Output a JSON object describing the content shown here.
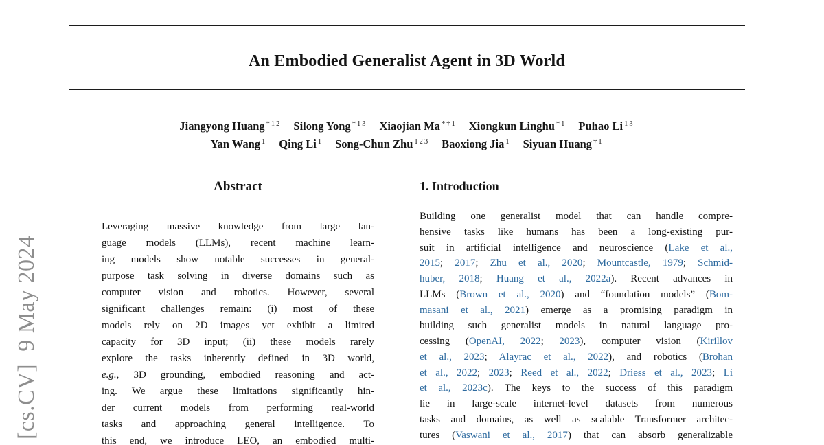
{
  "watermark": {
    "text": "[cs.CV]  9 May 2024"
  },
  "title": "An Embodied Generalist Agent in 3D World",
  "authors": {
    "line1": [
      {
        "name": "Jiangyong Huang",
        "sup": "*12"
      },
      {
        "name": "Silong Yong",
        "sup": "*13"
      },
      {
        "name": "Xiaojian Ma",
        "sup": "*†1"
      },
      {
        "name": "Xiongkun Linghu",
        "sup": "*1"
      },
      {
        "name": "Puhao Li",
        "sup": "13"
      }
    ],
    "line2": [
      {
        "name": "Yan Wang",
        "sup": "1"
      },
      {
        "name": "Qing Li",
        "sup": "1"
      },
      {
        "name": "Song-Chun Zhu",
        "sup": "123"
      },
      {
        "name": "Baoxiong Jia",
        "sup": "1"
      },
      {
        "name": "Siyuan Huang",
        "sup": "†1"
      }
    ]
  },
  "abstract": {
    "heading": "Abstract",
    "lines": [
      "Leveraging massive knowledge from large lan-",
      "guage models (LLMs), recent machine learn-",
      "ing models show notable successes in general-",
      "purpose task solving in diverse domains such as",
      "computer vision and robotics. However, several",
      "significant challenges remain: (i) most of these",
      "models rely on 2D images yet exhibit a limited",
      "capacity for 3D input; (ii) these models rarely",
      "explore the tasks inherently defined in 3D world,",
      [
        {
          "t": "e.g.",
          "c": "em"
        },
        {
          "t": ", 3D grounding, embodied reasoning and act-",
          "c": ""
        }
      ],
      "ing. We argue these limitations significantly hin-",
      "der current models from performing real-world",
      "tasks and approaching general intelligence. To",
      "this end, we introduce LEO, an embodied multi-"
    ]
  },
  "introduction": {
    "heading": "1. Introduction",
    "lines": [
      "Building one generalist model that can handle compre-",
      "hensive tasks like humans has been a long-existing pur-",
      [
        {
          "t": "suit in artificial intelligence and neuroscience (",
          "c": ""
        },
        {
          "t": "Lake et al.,",
          "c": "link"
        }
      ],
      [
        {
          "t": "2015",
          "c": "link"
        },
        {
          "t": "; ",
          "c": ""
        },
        {
          "t": "2017",
          "c": "link"
        },
        {
          "t": "; ",
          "c": ""
        },
        {
          "t": "Zhu et al., 2020",
          "c": "link"
        },
        {
          "t": "; ",
          "c": ""
        },
        {
          "t": "Mountcastle, 1979",
          "c": "link"
        },
        {
          "t": "; ",
          "c": ""
        },
        {
          "t": "Schmid-",
          "c": "link"
        }
      ],
      [
        {
          "t": "huber, 2018",
          "c": "link"
        },
        {
          "t": "; ",
          "c": ""
        },
        {
          "t": "Huang et al., 2022a",
          "c": "link"
        },
        {
          "t": "). Recent advances in",
          "c": ""
        }
      ],
      [
        {
          "t": "LLMs (",
          "c": ""
        },
        {
          "t": "Brown et al., 2020",
          "c": "link"
        },
        {
          "t": ") and “foundation models” (",
          "c": ""
        },
        {
          "t": "Bom-",
          "c": "link"
        }
      ],
      [
        {
          "t": "masani et al., 2021",
          "c": "link"
        },
        {
          "t": ") emerge as a promising paradigm in",
          "c": ""
        }
      ],
      "building such generalist models in natural language pro-",
      [
        {
          "t": "cessing (",
          "c": ""
        },
        {
          "t": "OpenAI, 2022",
          "c": "link"
        },
        {
          "t": "; ",
          "c": ""
        },
        {
          "t": "2023",
          "c": "link"
        },
        {
          "t": "), computer vision (",
          "c": ""
        },
        {
          "t": "Kirillov",
          "c": "link"
        }
      ],
      [
        {
          "t": "et al., 2023",
          "c": "link"
        },
        {
          "t": "; ",
          "c": ""
        },
        {
          "t": "Alayrac et al., 2022",
          "c": "link"
        },
        {
          "t": "), and robotics (",
          "c": ""
        },
        {
          "t": "Brohan",
          "c": "link"
        }
      ],
      [
        {
          "t": "et al., 2022",
          "c": "link"
        },
        {
          "t": "; ",
          "c": ""
        },
        {
          "t": "2023",
          "c": "link"
        },
        {
          "t": "; ",
          "c": ""
        },
        {
          "t": "Reed et al., 2022",
          "c": "link"
        },
        {
          "t": "; ",
          "c": ""
        },
        {
          "t": "Driess et al., 2023",
          "c": "link"
        },
        {
          "t": "; ",
          "c": ""
        },
        {
          "t": "Li",
          "c": "link"
        }
      ],
      [
        {
          "t": "et al., 2023c",
          "c": "link"
        },
        {
          "t": "). The keys to the success of this paradigm",
          "c": ""
        }
      ],
      "lie in large-scale internet-level datasets from numerous",
      "tasks and domains, as well as scalable Transformer architec-",
      [
        {
          "t": "tures (",
          "c": ""
        },
        {
          "t": "Vaswani et al., 2017",
          "c": "link"
        },
        {
          "t": ") that can absorb generalizable",
          "c": ""
        }
      ]
    ]
  }
}
